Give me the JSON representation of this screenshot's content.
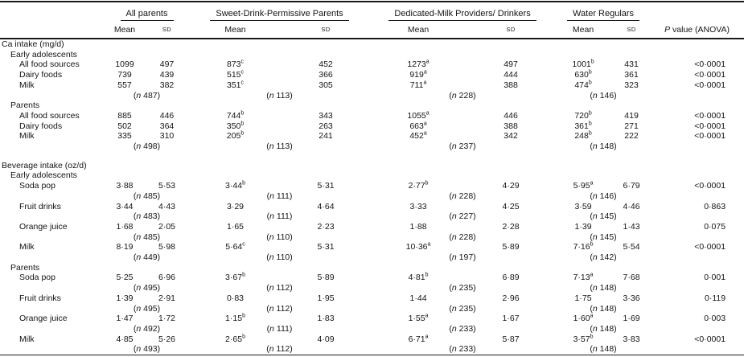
{
  "table": {
    "groups": [
      {
        "label": "All parents"
      },
      {
        "label": "Sweet-Drink-Permissive Parents"
      },
      {
        "label": "Dedicated-Milk Providers/ Drinkers"
      },
      {
        "label": "Water Regulars"
      }
    ],
    "sub_headers": {
      "mean": "Mean",
      "sd": "SD"
    },
    "p_header": {
      "p": "P",
      "rest": " value (ANOVA)"
    },
    "n_symbol": "n",
    "rows": [
      {
        "t": "section",
        "label": "Ca intake (mg/d)"
      },
      {
        "t": "sub",
        "label": "Early adolescents"
      },
      {
        "t": "data",
        "label": "All food sources",
        "cells": [
          [
            "1099",
            "",
            "497"
          ],
          [
            "873",
            "c",
            "452"
          ],
          [
            "1273",
            "a",
            "497"
          ],
          [
            "1001",
            "b",
            "431"
          ]
        ],
        "p": "<0·0001"
      },
      {
        "t": "data",
        "label": "Dairy foods",
        "cells": [
          [
            "739",
            "",
            "439"
          ],
          [
            "515",
            "c",
            "366"
          ],
          [
            "919",
            "a",
            "444"
          ],
          [
            "630",
            "b",
            "361"
          ]
        ],
        "p": "<0·0001"
      },
      {
        "t": "data",
        "label": "Milk",
        "cells": [
          [
            "557",
            "",
            "382"
          ],
          [
            "351",
            "c",
            "305"
          ],
          [
            "711",
            "a",
            "388"
          ],
          [
            "474",
            "b",
            "323"
          ]
        ],
        "p": "<0·0001"
      },
      {
        "t": "n",
        "values": [
          "487",
          "113",
          "228",
          "146"
        ]
      },
      {
        "t": "sub",
        "label": "Parents"
      },
      {
        "t": "data",
        "label": "All food sources",
        "cells": [
          [
            "885",
            "",
            "446"
          ],
          [
            "744",
            "b",
            "343"
          ],
          [
            "1055",
            "a",
            "446"
          ],
          [
            "720",
            "b",
            "419"
          ]
        ],
        "p": "<0·0001"
      },
      {
        "t": "data",
        "label": "Dairy foods",
        "cells": [
          [
            "502",
            "",
            "364"
          ],
          [
            "350",
            "b",
            "263"
          ],
          [
            "663",
            "a",
            "388"
          ],
          [
            "361",
            "b",
            "271"
          ]
        ],
        "p": "<0·0001"
      },
      {
        "t": "data",
        "label": "Milk",
        "cells": [
          [
            "335",
            "",
            "310"
          ],
          [
            "205",
            "b",
            "241"
          ],
          [
            "452",
            "a",
            "342"
          ],
          [
            "248",
            "b",
            "222"
          ]
        ],
        "p": "<0·0001"
      },
      {
        "t": "n",
        "values": [
          "498",
          "113",
          "237",
          "148"
        ]
      },
      {
        "t": "spacer"
      },
      {
        "t": "section",
        "label": "Beverage intake (oz/d)"
      },
      {
        "t": "sub",
        "label": "Early adolescents"
      },
      {
        "t": "data",
        "label": "Soda pop",
        "cells": [
          [
            "3·88",
            "",
            "5·53"
          ],
          [
            "3·44",
            "b",
            "5·31"
          ],
          [
            "2·77",
            "b",
            "4·29"
          ],
          [
            "5·95",
            "a",
            "6·79"
          ]
        ],
        "p": "<0·0001"
      },
      {
        "t": "n",
        "values": [
          "485",
          "111",
          "228",
          "146"
        ]
      },
      {
        "t": "data",
        "label": "Fruit drinks",
        "cells": [
          [
            "3·44",
            "",
            "4·43"
          ],
          [
            "3·29",
            "",
            "4·64"
          ],
          [
            "3·33",
            "",
            "4·25"
          ],
          [
            "3·59",
            "",
            "4·46"
          ]
        ],
        "p": "0·863"
      },
      {
        "t": "n",
        "values": [
          "483",
          "111",
          "227",
          "145"
        ]
      },
      {
        "t": "data",
        "label": "Orange juice",
        "cells": [
          [
            "1·68",
            "",
            "2·05"
          ],
          [
            "1·65",
            "",
            "2·23"
          ],
          [
            "1·88",
            "",
            "2·28"
          ],
          [
            "1·39",
            "",
            "1·43"
          ]
        ],
        "p": "0·075"
      },
      {
        "t": "n",
        "values": [
          "485",
          "110",
          "228",
          "145"
        ]
      },
      {
        "t": "data",
        "label": "Milk",
        "cells": [
          [
            "8·19",
            "",
            "5·98"
          ],
          [
            "5·64",
            "c",
            "5·31"
          ],
          [
            "10·36",
            "a",
            "5·89"
          ],
          [
            "7·16",
            "b",
            "5·54"
          ]
        ],
        "p": "<0·0001"
      },
      {
        "t": "n",
        "values": [
          "449",
          "110",
          "197",
          "142"
        ]
      },
      {
        "t": "sub",
        "label": "Parents"
      },
      {
        "t": "data",
        "label": "Soda pop",
        "cells": [
          [
            "5·25",
            "",
            "6·96"
          ],
          [
            "3·67",
            "b",
            "5·89"
          ],
          [
            "4·81",
            "b",
            "6·89"
          ],
          [
            "7·13",
            "a",
            "7·68"
          ]
        ],
        "p": "0·001"
      },
      {
        "t": "n",
        "values": [
          "495",
          "112",
          "235",
          "148"
        ]
      },
      {
        "t": "data",
        "label": "Fruit drinks",
        "cells": [
          [
            "1·39",
            "",
            "2·91"
          ],
          [
            "0·83",
            "",
            "1·95"
          ],
          [
            "1·44",
            "",
            "2·96"
          ],
          [
            "1·75",
            "",
            "3·36"
          ]
        ],
        "p": "0·119"
      },
      {
        "t": "n",
        "values": [
          "495",
          "112",
          "235",
          "148"
        ]
      },
      {
        "t": "data",
        "label": "Orange juice",
        "cells": [
          [
            "1·47",
            "",
            "1·72"
          ],
          [
            "1·15",
            "b",
            "1·83"
          ],
          [
            "1·55",
            "a",
            "1·67"
          ],
          [
            "1·60",
            "a",
            "1·69"
          ]
        ],
        "p": "0·003"
      },
      {
        "t": "n",
        "values": [
          "492",
          "111",
          "233",
          "148"
        ]
      },
      {
        "t": "data",
        "label": "Milk",
        "cells": [
          [
            "4·85",
            "",
            "5·26"
          ],
          [
            "2·65",
            "b",
            "4·09"
          ],
          [
            "6·71",
            "a",
            "5·87"
          ],
          [
            "3·57",
            "b",
            "3·83"
          ]
        ],
        "p": "<0·0001"
      },
      {
        "t": "n",
        "values": [
          "493",
          "112",
          "233",
          "148"
        ]
      }
    ]
  }
}
